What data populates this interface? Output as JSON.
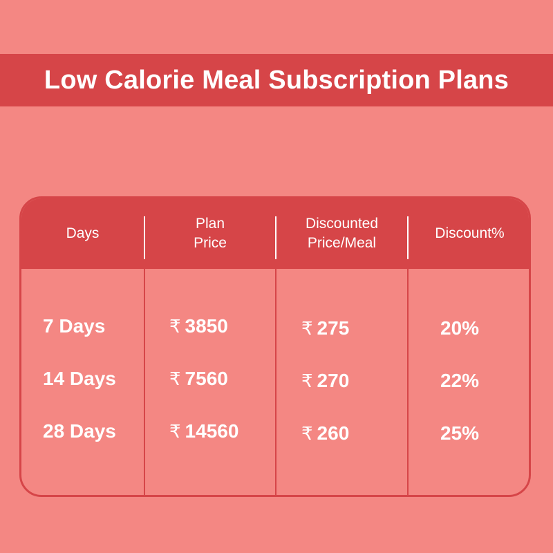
{
  "banner": {
    "title": "Low Calorie Meal Subscription Plans"
  },
  "table": {
    "headers": [
      [
        "Days"
      ],
      [
        "Plan",
        "Price"
      ],
      [
        "Discounted",
        "Price/Meal"
      ],
      [
        "Discount%"
      ]
    ],
    "currency_symbol": "₹",
    "rows": [
      {
        "days": "7 Days",
        "plan_price": "3850",
        "price_per_meal": "275",
        "discount": "20%"
      },
      {
        "days": "14 Days",
        "plan_price": "7560",
        "price_per_meal": "270",
        "discount": "22%"
      },
      {
        "days": "28 Days",
        "plan_price": "14560",
        "price_per_meal": "260",
        "discount": "25%"
      }
    ]
  },
  "colors": {
    "background": "#f48783",
    "accent": "#d64548",
    "text": "#ffffff"
  }
}
